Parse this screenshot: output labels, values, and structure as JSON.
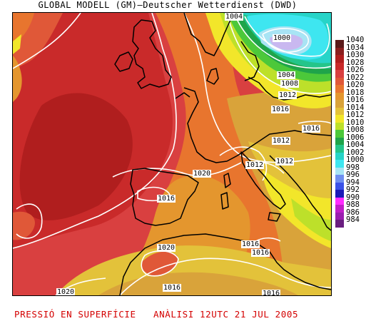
{
  "title": "GLOBAL MODELL (GM)–Deutscher Wetterdienst (DWD)",
  "footer": "PRESSIÓ EN SUPERFÍCIE   ANÀLISI 12UTC 21 JUL 2005",
  "legend": [
    {
      "label": "1040",
      "color": "#5a1a1a"
    },
    {
      "label": "1034",
      "color": "#8a1f1f"
    },
    {
      "label": "1030",
      "color": "#b01e1e"
    },
    {
      "label": "1028",
      "color": "#c92a2a"
    },
    {
      "label": "1026",
      "color": "#d94040"
    },
    {
      "label": "1022",
      "color": "#e05838"
    },
    {
      "label": "1020",
      "color": "#e8752e"
    },
    {
      "label": "1018",
      "color": "#e4962e"
    },
    {
      "label": "1016",
      "color": "#d9a33a"
    },
    {
      "label": "1014",
      "color": "#e3c23a"
    },
    {
      "label": "1012",
      "color": "#f2e62a"
    },
    {
      "label": "1010",
      "color": "#bde02a"
    },
    {
      "label": "1008",
      "color": "#4cc83a"
    },
    {
      "label": "1006",
      "color": "#1fa44a"
    },
    {
      "label": "1004",
      "color": "#24c58a"
    },
    {
      "label": "1002",
      "color": "#27d4c8"
    },
    {
      "label": "1000",
      "color": "#3ee6f0"
    },
    {
      "label": "998",
      "color": "#a8e4f4"
    },
    {
      "label": "996",
      "color": "#6f8ff0"
    },
    {
      "label": "994",
      "color": "#3a52e8"
    },
    {
      "label": "992",
      "color": "#1a1ab8"
    },
    {
      "label": "990",
      "color": "#ff2bff"
    },
    {
      "label": "988",
      "color": "#c01ec8"
    },
    {
      "label": "986",
      "color": "#9a1eb0"
    },
    {
      "label": "984",
      "color": "#6a1e80"
    }
  ],
  "isobar_labels": [
    "1004",
    "1000",
    "1004",
    "1008",
    "1012",
    "1016",
    "1016",
    "1012",
    "1012",
    "1012",
    "1020",
    "1016",
    "1020",
    "1016",
    "1016",
    "1016",
    "1020",
    "1016",
    "1016"
  ]
}
